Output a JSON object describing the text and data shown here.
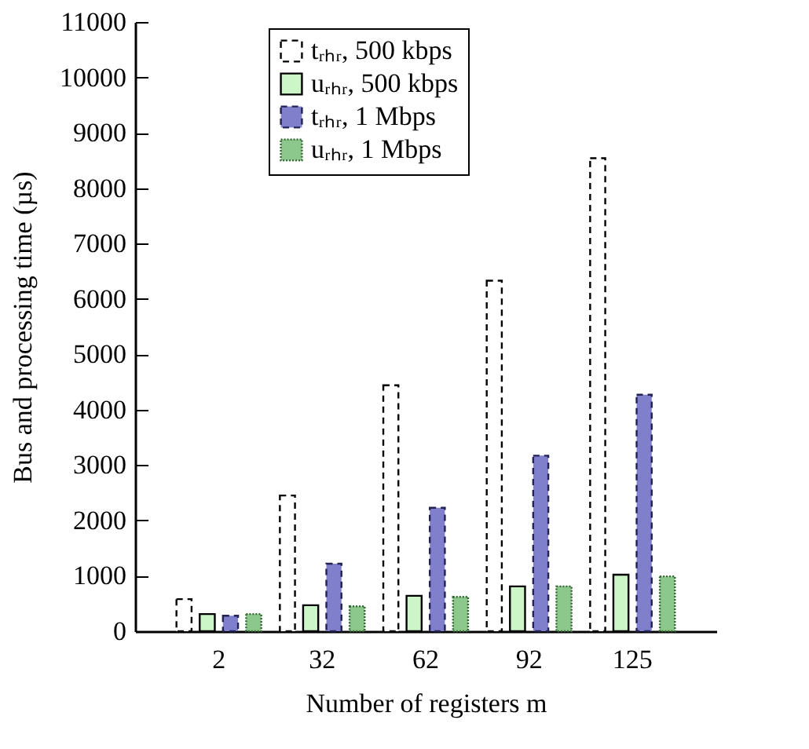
{
  "chart_data": {
    "type": "bar",
    "xlabel": "Number of registers m",
    "ylabel": "Bus and processing time (µs)",
    "categories": [
      "2",
      "32",
      "62",
      "92",
      "125"
    ],
    "series": [
      {
        "name": "tᵣₕᵣ, 500 kbps",
        "color": "#ffffff",
        "line_style": "dashed",
        "values": [
          580,
          2450,
          4440,
          6330,
          8540
        ]
      },
      {
        "name": "uᵣₕᵣ, 500 kbps",
        "color": "#ccf5c8",
        "line_style": "solid",
        "values": [
          310,
          470,
          640,
          810,
          1020
        ]
      },
      {
        "name": "tᵣₕᵣ, 1 Mbps",
        "color": "#7f7fcc",
        "line_style": "dashed",
        "values": [
          280,
          1220,
          2230,
          3170,
          4270
        ]
      },
      {
        "name": "uᵣₕᵣ, 1 Mbps",
        "color": "#8cc88c",
        "line_style": "dotted",
        "values": [
          310,
          450,
          620,
          810,
          990
        ]
      }
    ],
    "ylim": [
      0,
      11000
    ],
    "yticks": [
      0,
      1000,
      2000,
      3000,
      4000,
      5000,
      6000,
      7000,
      8000,
      9000,
      10000,
      11000
    ],
    "grid": false,
    "legend": "top"
  }
}
